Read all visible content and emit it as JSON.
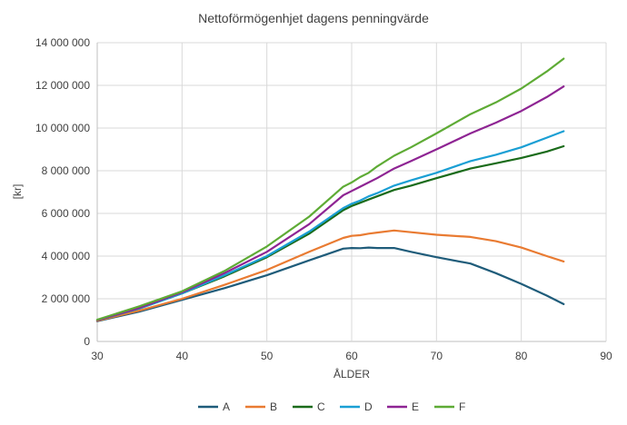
{
  "chart_data": {
    "type": "line",
    "title": "Nettoförmögenhjet dagens penningvärde",
    "xlabel": "ÅLDER",
    "ylabel": "[kr]",
    "xlim": [
      30,
      90
    ],
    "ylim": [
      0,
      14000000
    ],
    "x_ticks": [
      30,
      40,
      50,
      60,
      70,
      80,
      90
    ],
    "x_tick_labels": [
      "30",
      "40",
      "50",
      "60",
      "70",
      "80",
      "90"
    ],
    "y_ticks": [
      0,
      2000000,
      4000000,
      6000000,
      8000000,
      10000000,
      12000000,
      14000000
    ],
    "y_tick_labels": [
      "0",
      "2 000 000",
      "4 000 000",
      "6 000 000",
      "8 000 000",
      "10 000 000",
      "12 000 000",
      "14 000 000"
    ],
    "grid": "vertical and horizontal major",
    "legend_position": "bottom",
    "x": [
      30,
      35,
      40,
      45,
      50,
      55,
      59,
      60,
      61,
      62,
      63,
      65,
      67,
      70,
      74,
      77,
      80,
      83,
      85
    ],
    "series": [
      {
        "name": "A",
        "color": "#1f5c7a",
        "values": [
          950000,
          1400000,
          1950000,
          2500000,
          3100000,
          3800000,
          4350000,
          4380000,
          4370000,
          4400000,
          4380000,
          4380000,
          4200000,
          3950000,
          3650000,
          3200000,
          2700000,
          2150000,
          1750000
        ]
      },
      {
        "name": "B",
        "color": "#e97b32",
        "values": [
          970000,
          1450000,
          2000000,
          2650000,
          3350000,
          4200000,
          4850000,
          4950000,
          4980000,
          5050000,
          5100000,
          5200000,
          5120000,
          5000000,
          4900000,
          4700000,
          4400000,
          4000000,
          3750000
        ]
      },
      {
        "name": "C",
        "color": "#1a6b1a",
        "values": [
          1000000,
          1550000,
          2250000,
          3050000,
          3950000,
          5050000,
          6150000,
          6350000,
          6500000,
          6650000,
          6800000,
          7100000,
          7300000,
          7650000,
          8100000,
          8350000,
          8600000,
          8900000,
          9150000
        ]
      },
      {
        "name": "D",
        "color": "#1a9fd4",
        "values": [
          1000000,
          1550000,
          2250000,
          3100000,
          4000000,
          5150000,
          6250000,
          6450000,
          6600000,
          6800000,
          6950000,
          7300000,
          7550000,
          7900000,
          8450000,
          8750000,
          9100000,
          9550000,
          9850000
        ]
      },
      {
        "name": "E",
        "color": "#8e2493",
        "values": [
          1000000,
          1580000,
          2300000,
          3200000,
          4200000,
          5500000,
          6850000,
          7050000,
          7250000,
          7450000,
          7650000,
          8100000,
          8450000,
          9000000,
          9750000,
          10250000,
          10800000,
          11450000,
          11950000
        ]
      },
      {
        "name": "F",
        "color": "#5eab35",
        "values": [
          1020000,
          1650000,
          2350000,
          3300000,
          4450000,
          5850000,
          7250000,
          7450000,
          7700000,
          7900000,
          8200000,
          8700000,
          9100000,
          9750000,
          10650000,
          11200000,
          11850000,
          12650000,
          13250000
        ]
      }
    ]
  }
}
